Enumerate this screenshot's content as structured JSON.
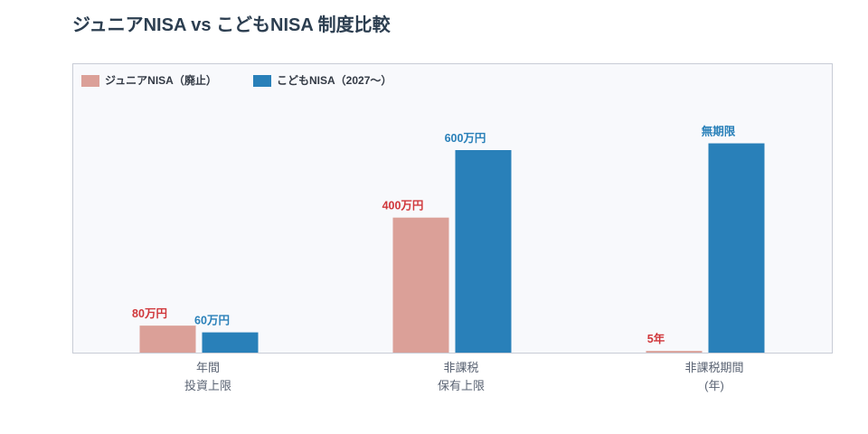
{
  "chart_data": {
    "type": "bar",
    "title": "ジュニアNISA vs こどもNISA 制度比較",
    "categories": [
      "年間\n投資上限",
      "非課税\n保有上限",
      "非課税期間\n(年)"
    ],
    "series": [
      {
        "name": "ジュニアNISA（廃止）",
        "color": "#dba098",
        "label_color": "#d0373b",
        "values": [
          80,
          400,
          5
        ],
        "labels": [
          "80万円",
          "400万円",
          "5年"
        ]
      },
      {
        "name": "こどもNISA（2027〜）",
        "color": "#2980b9",
        "label_color": "#2980b9",
        "values": [
          60,
          600,
          620
        ],
        "labels": [
          "60万円",
          "600万円",
          "無期限"
        ]
      }
    ],
    "legend": "top-left",
    "grid": false
  },
  "colors": {
    "title": "#2c3e50",
    "category_label": "#5a6373",
    "plot_background": "#f8f9fc",
    "plot_border": "#c8ccd6"
  }
}
